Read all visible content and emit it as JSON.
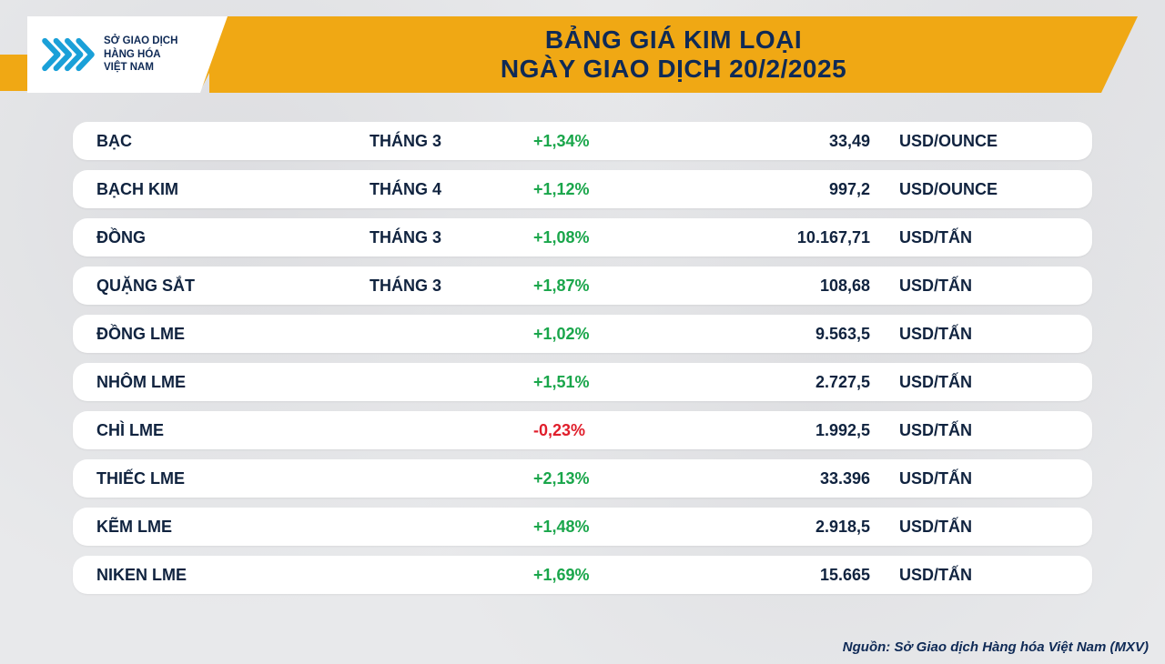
{
  "header": {
    "title_line1": "BẢNG GIÁ KIM LOẠI",
    "title_line2": "NGÀY GIAO DỊCH 20/2/2025",
    "org_line1": "SỞ GIAO DỊCH",
    "org_line2": "HÀNG HÓA",
    "org_line3": "VIỆT NAM"
  },
  "colors": {
    "banner_bg": "#f0a814",
    "banner_text": "#0f2a56",
    "row_bg": "#ffffff",
    "page_bg": "#e8e9eb",
    "text": "#10233f",
    "positive": "#1aa64b",
    "negative": "#e01e2b",
    "logo_blue": "#1aa0d8"
  },
  "table": {
    "rows": [
      {
        "name": "BẠC",
        "month": "THÁNG 3",
        "change": "+1,34%",
        "dir": "pos",
        "price": "33,49",
        "unit": "USD/OUNCE"
      },
      {
        "name": "BẠCH KIM",
        "month": "THÁNG 4",
        "change": "+1,12%",
        "dir": "pos",
        "price": "997,2",
        "unit": "USD/OUNCE"
      },
      {
        "name": "ĐỒNG",
        "month": "THÁNG 3",
        "change": "+1,08%",
        "dir": "pos",
        "price": "10.167,71",
        "unit": "USD/TẤN"
      },
      {
        "name": "QUẶNG SẮT",
        "month": "THÁNG 3",
        "change": "+1,87%",
        "dir": "pos",
        "price": "108,68",
        "unit": "USD/TẤN"
      },
      {
        "name": "ĐỒNG LME",
        "month": "",
        "change": "+1,02%",
        "dir": "pos",
        "price": "9.563,5",
        "unit": "USD/TẤN"
      },
      {
        "name": "NHÔM LME",
        "month": "",
        "change": "+1,51%",
        "dir": "pos",
        "price": "2.727,5",
        "unit": "USD/TẤN"
      },
      {
        "name": "CHÌ LME",
        "month": "",
        "change": "-0,23%",
        "dir": "neg",
        "price": "1.992,5",
        "unit": "USD/TẤN"
      },
      {
        "name": "THIẾC LME",
        "month": "",
        "change": "+2,13%",
        "dir": "pos",
        "price": "33.396",
        "unit": "USD/TẤN"
      },
      {
        "name": "KẼM LME",
        "month": "",
        "change": "+1,48%",
        "dir": "pos",
        "price": "2.918,5",
        "unit": "USD/TẤN"
      },
      {
        "name": "NIKEN LME",
        "month": "",
        "change": "+1,69%",
        "dir": "pos",
        "price": "15.665",
        "unit": "USD/TẤN"
      }
    ]
  },
  "footer": {
    "source": "Nguồn: Sở Giao dịch Hàng hóa Việt Nam (MXV)"
  }
}
